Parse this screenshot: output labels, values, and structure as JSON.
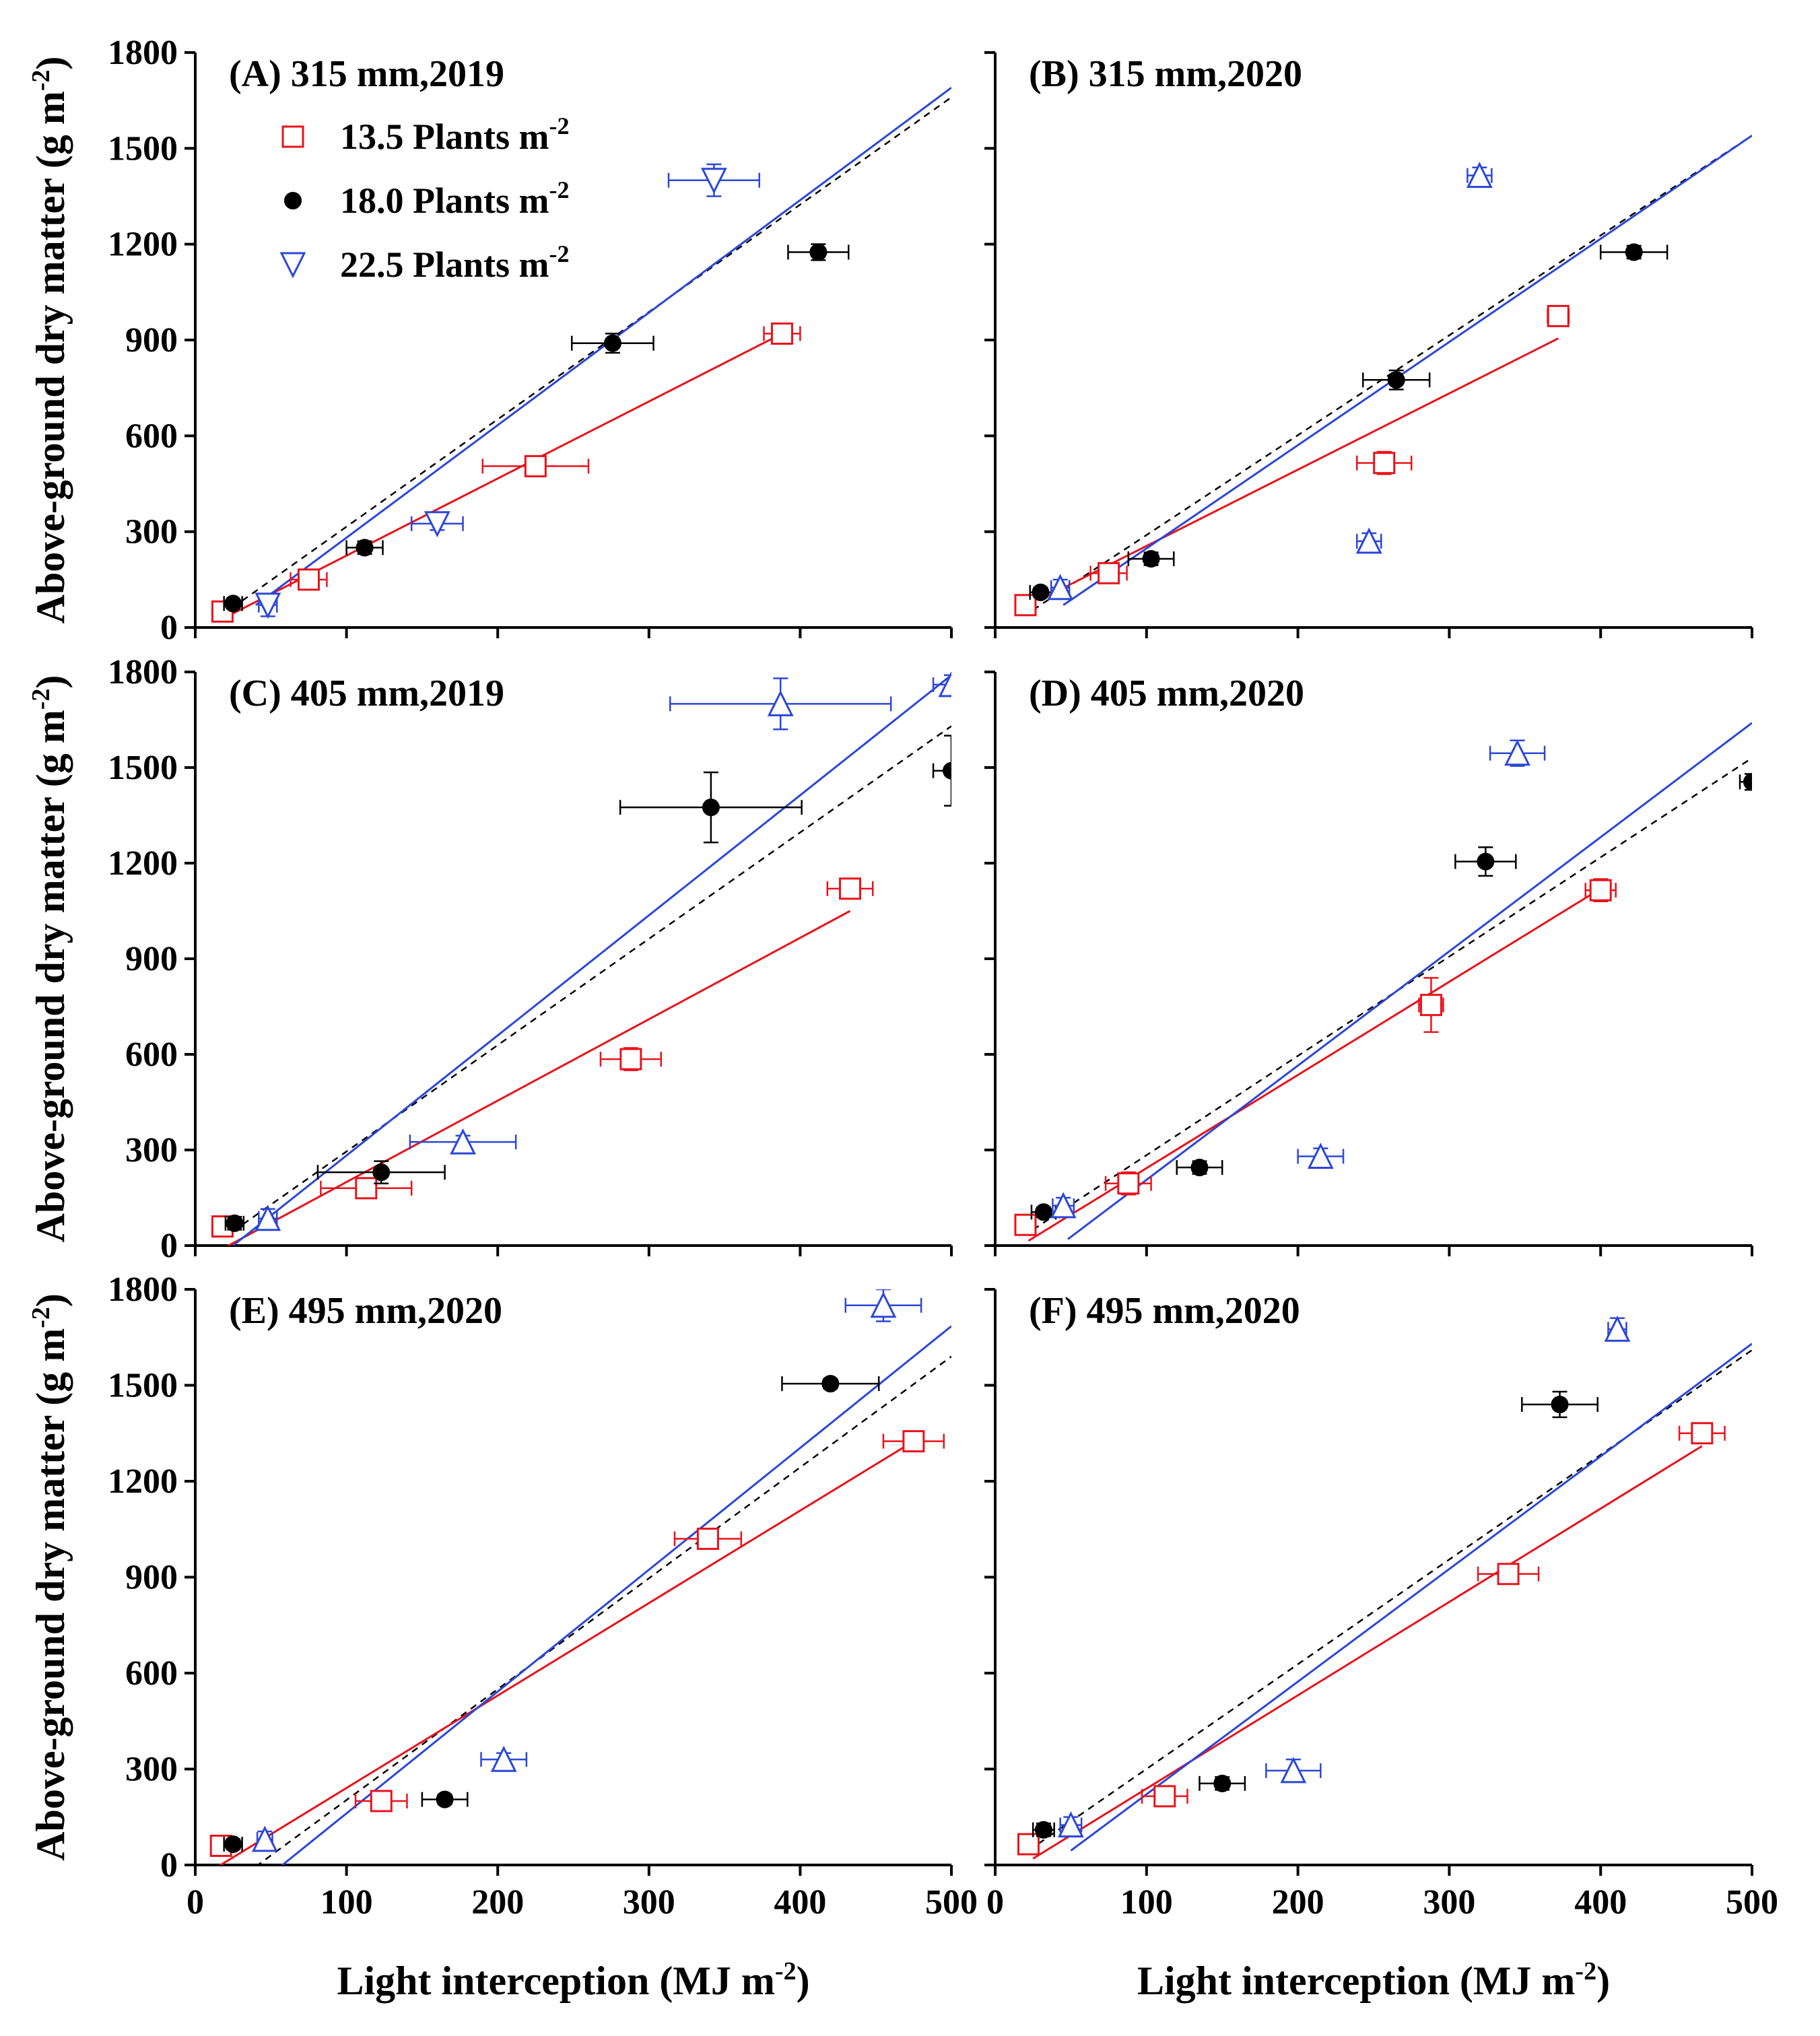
{
  "colors": {
    "d135": "#e8131b",
    "d180": "#000000",
    "d225": "#2b47d8",
    "overall": "#000000"
  },
  "chart_data": {
    "type": "scatter",
    "xlabel_main": "Light interception (MJ m",
    "xlabel_sup": "-2",
    "xlabel_end": ")",
    "ylabel_main": "Above-ground dry matter (g m",
    "ylabel_sup": "-2",
    "ylabel_end": ")",
    "xlim": [
      0,
      500
    ],
    "ylim": [
      0,
      1800
    ],
    "xticks": [
      0,
      100,
      200,
      300,
      400,
      500
    ],
    "yticks": [
      0,
      300,
      600,
      900,
      1200,
      1500,
      1800
    ],
    "legend": [
      {
        "key": "d135",
        "text": "13.5 Plants m",
        "sup": "-2",
        "marker": "open-square"
      },
      {
        "key": "d180",
        "text": "18.0 Plants m",
        "sup": "-2",
        "marker": "filled-circle"
      },
      {
        "key": "d225",
        "text": "22.5 Plants m",
        "sup": "-2",
        "marker": "open-triangle"
      }
    ],
    "panels": [
      {
        "label": "(A) 315 mm,2019",
        "series": [
          {
            "key": "d135",
            "points": [
              {
                "x": 18,
                "y": 50,
                "xe": 5,
                "ye": 10
              },
              {
                "x": 75,
                "y": 150,
                "xe": 12,
                "ye": 18
              },
              {
                "x": 225,
                "y": 505,
                "xe": 35,
                "ye": 30
              },
              {
                "x": 388,
                "y": 920,
                "xe": 12,
                "ye": 20
              }
            ],
            "fit": [
              [
                15,
                20
              ],
              [
                388,
                920
              ]
            ]
          },
          {
            "key": "d180",
            "points": [
              {
                "x": 25,
                "y": 75,
                "xe": 6,
                "ye": 8
              },
              {
                "x": 112,
                "y": 250,
                "xe": 12,
                "ye": 20
              },
              {
                "x": 276,
                "y": 890,
                "xe": 27,
                "ye": 30
              },
              {
                "x": 412,
                "y": 1175,
                "xe": 20,
                "ye": 25
              }
            ],
            "fit": null
          },
          {
            "key": "d225",
            "points": [
              {
                "x": 48,
                "y": 70,
                "xe": 6,
                "ye": 35,
                "m": "down"
              },
              {
                "x": 160,
                "y": 325,
                "xe": 17,
                "ye": 20,
                "m": "down"
              },
              {
                "x": 343,
                "y": 1400,
                "xe": 30,
                "ye": 50,
                "m": "down"
              }
            ],
            "fit": [
              [
                40,
                70
              ],
              [
                500,
                1690
              ]
            ]
          }
        ],
        "overall": [
          [
            18,
            40
          ],
          [
            500,
            1660
          ]
        ]
      },
      {
        "label": "(B) 315 mm,2020",
        "series": [
          {
            "key": "d135",
            "points": [
              {
                "x": 20,
                "y": 70,
                "xe": 6,
                "ye": 12
              },
              {
                "x": 75,
                "y": 170,
                "xe": 12,
                "ye": 15
              },
              {
                "x": 257,
                "y": 515,
                "xe": 18,
                "ye": 35
              },
              {
                "x": 372,
                "y": 975,
                "xe": 7,
                "ye": 25
              }
            ],
            "fit": [
              [
                35,
                100
              ],
              [
                372,
                905
              ]
            ]
          },
          {
            "key": "d180",
            "points": [
              {
                "x": 30,
                "y": 110,
                "xe": 7,
                "ye": 15
              },
              {
                "x": 103,
                "y": 215,
                "xe": 15,
                "ye": 20
              },
              {
                "x": 265,
                "y": 775,
                "xe": 22,
                "ye": 30
              },
              {
                "x": 422,
                "y": 1175,
                "xe": 22,
                "ye": 20
              }
            ],
            "fit": null
          },
          {
            "key": "d225",
            "points": [
              {
                "x": 43,
                "y": 125,
                "xe": 6,
                "ye": 25
              },
              {
                "x": 247,
                "y": 270,
                "xe": 8,
                "ye": 25
              },
              {
                "x": 320,
                "y": 1415,
                "xe": 8,
                "ye": 25
              }
            ],
            "fit": [
              [
                45,
                70
              ],
              [
                500,
                1540
              ]
            ]
          }
        ],
        "overall": [
          [
            25,
            55
          ],
          [
            500,
            1540
          ]
        ]
      },
      {
        "label": "(C) 405 mm,2019",
        "series": [
          {
            "key": "d135",
            "points": [
              {
                "x": 18,
                "y": 60,
                "xe": 5,
                "ye": 10
              },
              {
                "x": 113,
                "y": 180,
                "xe": 30,
                "ye": 18
              },
              {
                "x": 288,
                "y": 585,
                "xe": 20,
                "ye": 35
              },
              {
                "x": 433,
                "y": 1120,
                "xe": 15,
                "ye": 25
              }
            ],
            "fit": [
              [
                20,
                -5
              ],
              [
                433,
                1050
              ]
            ]
          },
          {
            "key": "d180",
            "points": [
              {
                "x": 26,
                "y": 70,
                "xe": 6,
                "ye": 20
              },
              {
                "x": 123,
                "y": 230,
                "xe": 42,
                "ye": 35
              },
              {
                "x": 341,
                "y": 1375,
                "xe": 60,
                "ye": 110
              },
              {
                "x": 500,
                "y": 1490,
                "xe": 12,
                "ye": 110
              }
            ],
            "fit": null
          },
          {
            "key": "d225",
            "points": [
              {
                "x": 48,
                "y": 85,
                "xe": 6,
                "ye": 30
              },
              {
                "x": 177,
                "y": 325,
                "xe": 35,
                "ye": 20
              },
              {
                "x": 387,
                "y": 1700,
                "xe": 73,
                "ye": 80
              },
              {
                "x": 500,
                "y": 1760,
                "xe": 12,
                "ye": 30
              }
            ],
            "fit": [
              [
                25,
                0
              ],
              [
                500,
                1790
              ]
            ]
          }
        ],
        "overall": [
          [
            25,
            45
          ],
          [
            500,
            1630
          ]
        ]
      },
      {
        "label": "(D) 405 mm,2020",
        "series": [
          {
            "key": "d135",
            "points": [
              {
                "x": 20,
                "y": 65,
                "xe": 5,
                "ye": 18
              },
              {
                "x": 88,
                "y": 195,
                "xe": 15,
                "ye": 35
              },
              {
                "x": 288,
                "y": 755,
                "xe": 8,
                "ye": 85
              },
              {
                "x": 400,
                "y": 1115,
                "xe": 10,
                "ye": 35
              }
            ],
            "fit": [
              [
                22,
                15
              ],
              [
                400,
                1120
              ]
            ]
          },
          {
            "key": "d180",
            "points": [
              {
                "x": 32,
                "y": 105,
                "xe": 8,
                "ye": 15
              },
              {
                "x": 135,
                "y": 245,
                "xe": 15,
                "ye": 20
              },
              {
                "x": 324,
                "y": 1205,
                "xe": 20,
                "ye": 45
              },
              {
                "x": 500,
                "y": 1455,
                "xe": 8,
                "ye": 25
              }
            ],
            "fit": null
          },
          {
            "key": "d225",
            "points": [
              {
                "x": 45,
                "y": 125,
                "xe": 7,
                "ye": 25
              },
              {
                "x": 215,
                "y": 280,
                "xe": 15,
                "ye": 25
              },
              {
                "x": 345,
                "y": 1545,
                "xe": 18,
                "ye": 40
              }
            ],
            "fit": [
              [
                48,
                20
              ],
              [
                500,
                1640
              ]
            ]
          }
        ],
        "overall": [
          [
            25,
            50
          ],
          [
            500,
            1530
          ]
        ]
      },
      {
        "label": "(E) 495 mm,2020",
        "series": [
          {
            "key": "d135",
            "points": [
              {
                "x": 17,
                "y": 60,
                "xe": 5,
                "ye": 18
              },
              {
                "x": 123,
                "y": 200,
                "xe": 17,
                "ye": 20
              },
              {
                "x": 339,
                "y": 1020,
                "xe": 22,
                "ye": 25
              },
              {
                "x": 475,
                "y": 1325,
                "xe": 20,
                "ye": 25
              }
            ],
            "fit": [
              [
                15,
                -5
              ],
              [
                475,
                1325
              ]
            ]
          },
          {
            "key": "d180",
            "points": [
              {
                "x": 25,
                "y": 65,
                "xe": 6,
                "ye": 15
              },
              {
                "x": 165,
                "y": 205,
                "xe": 15,
                "ye": 15
              },
              {
                "x": 420,
                "y": 1505,
                "xe": 32,
                "ye": 15
              }
            ],
            "fit": null
          },
          {
            "key": "d225",
            "points": [
              {
                "x": 46,
                "y": 80,
                "xe": 5,
                "ye": 25
              },
              {
                "x": 204,
                "y": 330,
                "xe": 15,
                "ye": 20
              },
              {
                "x": 455,
                "y": 1750,
                "xe": 25,
                "ye": 50
              }
            ],
            "fit": [
              [
                55,
                -10
              ],
              [
                500,
                1685
              ]
            ]
          }
        ],
        "overall": [
          [
            40,
            -5
          ],
          [
            500,
            1590
          ]
        ]
      },
      {
        "label": "(F) 495 mm,2020",
        "series": [
          {
            "key": "d135",
            "points": [
              {
                "x": 22,
                "y": 65,
                "xe": 6,
                "ye": 25
              },
              {
                "x": 112,
                "y": 215,
                "xe": 15,
                "ye": 25
              },
              {
                "x": 339,
                "y": 910,
                "xe": 20,
                "ye": 25
              },
              {
                "x": 467,
                "y": 1350,
                "xe": 15,
                "ye": 25
              }
            ],
            "fit": [
              [
                25,
                20
              ],
              [
                467,
                1310
              ]
            ]
          },
          {
            "key": "d180",
            "points": [
              {
                "x": 32,
                "y": 110,
                "xe": 7,
                "ye": 20
              },
              {
                "x": 150,
                "y": 255,
                "xe": 15,
                "ye": 20
              },
              {
                "x": 373,
                "y": 1440,
                "xe": 25,
                "ye": 40
              }
            ],
            "fit": null
          },
          {
            "key": "d225",
            "points": [
              {
                "x": 50,
                "y": 125,
                "xe": 7,
                "ye": 25
              },
              {
                "x": 197,
                "y": 295,
                "xe": 18,
                "ye": 35
              },
              {
                "x": 411,
                "y": 1675,
                "xe": 6,
                "ye": 35
              }
            ],
            "fit": [
              [
                50,
                45
              ],
              [
                500,
                1630
              ]
            ]
          }
        ],
        "overall": [
          [
            22,
            45
          ],
          [
            500,
            1610
          ]
        ]
      }
    ]
  }
}
